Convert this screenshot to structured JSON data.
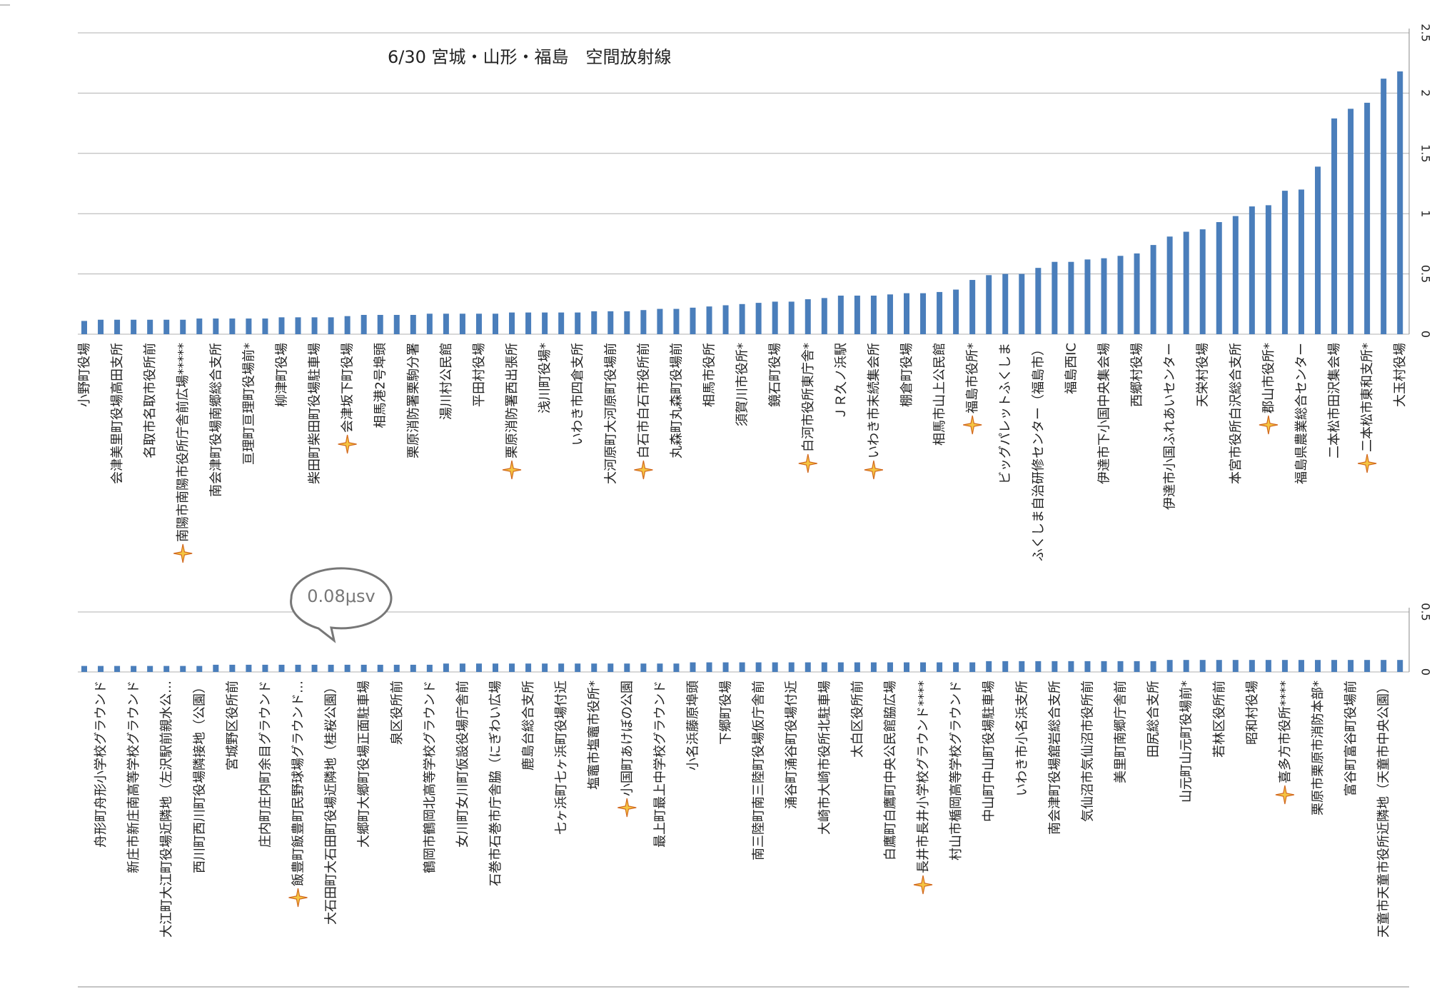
{
  "chart_data": [
    {
      "type": "bar",
      "title": "6/30 宮城・山形・福島　空間放射線",
      "color": "#4a7ebb",
      "categories": [
        "小野町役場",
        null,
        "会津美里町役場高田支所",
        null,
        "名取市名取市役所前",
        null,
        "南陽市南陽市役所庁舎前広場*****",
        null,
        "南会津町役場南郷総合支所",
        null,
        "亘理町亘理町役場前*",
        null,
        "柳津町役場",
        null,
        "柴田町柴田町役場駐車場",
        null,
        "会津坂下町役場",
        null,
        "相馬港2号埠頭",
        null,
        "栗原消防署栗駒分署",
        null,
        "湯川村公民館",
        null,
        "平田村役場",
        null,
        "栗原消防署西出張所",
        null,
        "浅川町役場*",
        null,
        "いわき市四倉支所",
        null,
        "大河原町大河原町役場前",
        null,
        "白石市白石市役所前",
        null,
        "丸森町丸森町役場前",
        null,
        "相馬市役所",
        null,
        "須賀川市役所*",
        null,
        "鏡石町役場",
        null,
        "白河市役所東庁舎*",
        null,
        "ＪＲ久ノ浜駅",
        null,
        "いわき市末続集会所",
        null,
        "棚倉町役場",
        null,
        "相馬市山上公民館",
        null,
        "福島市役所*",
        null,
        "ビッグパレットふくしま",
        null,
        "ふくしま自治研修センター（福島市）",
        null,
        "福島西IC",
        null,
        "伊達市下小国中央集会場",
        null,
        "西郷村役場",
        null,
        "伊達市小国ふれあいセンター",
        null,
        "天栄村役場",
        null,
        "本宮市役所白沢総合支所",
        null,
        "郡山市役所*",
        null,
        "福島県農業総合センター",
        null,
        "二本松市田沢集会場",
        null,
        "二本松市東和支所*",
        null,
        "大玉村役場"
      ],
      "values": [
        0.11,
        0.12,
        0.12,
        0.12,
        0.12,
        0.12,
        0.12,
        0.13,
        0.13,
        0.13,
        0.13,
        0.13,
        0.14,
        0.14,
        0.14,
        0.14,
        0.15,
        0.16,
        0.16,
        0.16,
        0.16,
        0.17,
        0.17,
        0.17,
        0.17,
        0.17,
        0.18,
        0.18,
        0.18,
        0.18,
        0.18,
        0.19,
        0.19,
        0.19,
        0.2,
        0.21,
        0.21,
        0.22,
        0.23,
        0.24,
        0.25,
        0.26,
        0.27,
        0.27,
        0.29,
        0.3,
        0.32,
        0.32,
        0.32,
        0.33,
        0.34,
        0.34,
        0.35,
        0.37,
        0.45,
        0.49,
        0.5,
        0.5,
        0.55,
        0.6,
        0.6,
        0.62,
        0.63,
        0.65,
        0.67,
        0.74,
        0.81,
        0.85,
        0.87,
        0.93,
        0.98,
        1.06,
        1.07,
        1.19,
        1.2,
        1.39,
        1.79,
        1.87,
        1.92,
        2.12,
        2.18
      ],
      "ylim": [
        0,
        2.5
      ],
      "yticks": [
        0,
        0.5,
        1,
        1.5,
        2,
        2.5
      ],
      "grid": true
    },
    {
      "type": "bar",
      "color": "#4a7ebb",
      "annotation": "0.08μsv",
      "categories": [
        null,
        "舟形町舟形小学校グラウンド",
        null,
        "新庄市新庄南高等学校グラウンド",
        null,
        "大江町大江町役場近隣地（左沢駅前親水公…",
        null,
        "西川町西川町役場隣接地（公園）",
        null,
        "宮城野区役所前",
        null,
        "庄内町庄内町余目グラウンド",
        null,
        "飯豊町飯豊町民野球場グラウンド…",
        null,
        "大石田町大石田町役場近隣地（桂桜公園）",
        null,
        "大郷町大郷町役場正面駐車場",
        null,
        "泉区役所前",
        null,
        "鶴岡市鶴岡北高等学校グラウンド",
        null,
        "女川町女川町仮設役場庁舎前",
        null,
        "石巻市石巻市庁舎脇（にぎわい広場",
        null,
        "鹿島台総合支所",
        null,
        "七ヶ浜町七ヶ浜町役場付近",
        null,
        "塩竈市塩竈市役所*",
        null,
        "小国町あけぼの公園",
        null,
        "最上町最上中学校グラウンド",
        null,
        "小名浜藤原埠頭",
        null,
        "下郷町役場",
        null,
        "南三陸町南三陸町役場仮庁舎前",
        null,
        "涌谷町涌谷町役場付近",
        null,
        "大崎市大崎市役所北駐車場",
        null,
        "太白区役所前",
        null,
        "白鷹町白鷹町中央公民館脇広場",
        null,
        "長井市長井小学校グラウンド****",
        null,
        "村山市楯岡高等学校グラウンド",
        null,
        "中山町中山町役場駐車場",
        null,
        "いわき市小名浜支所",
        null,
        "南会津町役場舘岩総合支所",
        null,
        "気仙沼市気仙沼市役所前",
        null,
        "美里町南郷庁舎前",
        null,
        "田尻総合支所",
        null,
        "山元町山元町役場前*",
        null,
        "若林区役所前",
        null,
        "昭和村役場",
        null,
        "喜多方市役所****",
        null,
        "栗原市栗原市消防本部*",
        null,
        "富谷町富谷町役場前",
        null,
        "天童市天童市役所近隣地（天童市中央公園）",
        null
      ],
      "values": [
        0.05,
        0.05,
        0.05,
        0.05,
        0.05,
        0.05,
        0.05,
        0.05,
        0.06,
        0.06,
        0.06,
        0.06,
        0.06,
        0.06,
        0.06,
        0.06,
        0.06,
        0.06,
        0.06,
        0.06,
        0.06,
        0.06,
        0.07,
        0.07,
        0.07,
        0.07,
        0.07,
        0.07,
        0.07,
        0.07,
        0.07,
        0.07,
        0.07,
        0.07,
        0.07,
        0.07,
        0.07,
        0.08,
        0.08,
        0.08,
        0.08,
        0.08,
        0.08,
        0.08,
        0.08,
        0.08,
        0.08,
        0.08,
        0.08,
        0.08,
        0.08,
        0.08,
        0.08,
        0.08,
        0.08,
        0.09,
        0.09,
        0.09,
        0.09,
        0.09,
        0.09,
        0.09,
        0.09,
        0.09,
        0.09,
        0.09,
        0.1,
        0.1,
        0.1,
        0.1,
        0.1,
        0.1,
        0.1,
        0.1,
        0.1,
        0.1,
        0.1,
        0.1,
        0.1,
        0.1,
        0.1
      ],
      "ylim": [
        0,
        0.5
      ],
      "yticks": [
        0,
        0.5
      ],
      "grid": true
    }
  ]
}
